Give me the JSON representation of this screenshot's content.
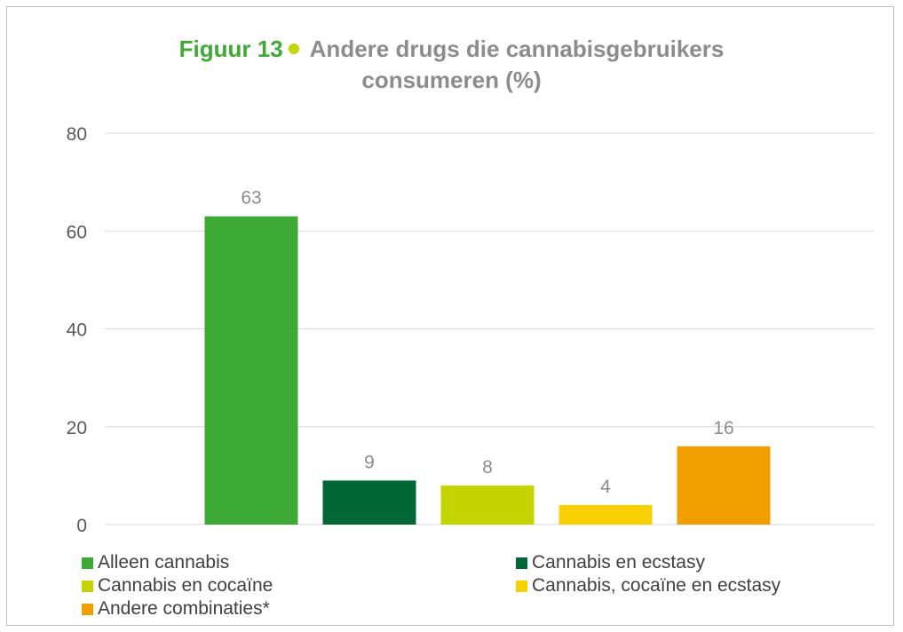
{
  "title": {
    "figure_label": "Figuur 13",
    "line1": "Andere drugs die cannabisgebruikers",
    "line2": "consumeren (%)"
  },
  "colors": {
    "title_green": "#3daa35",
    "title_dot": "#c3d400",
    "title_grey": "#8c8c8c"
  },
  "chart_data": {
    "type": "bar",
    "categories": [
      "Alleen cannabis",
      "Cannabis en ecstasy",
      "Cannabis en cocaïne",
      "Cannabis, cocaïne en ecstasy",
      "Andere combinaties*"
    ],
    "values": [
      63,
      9,
      8,
      4,
      16
    ],
    "data_labels": [
      "63",
      "9",
      "8",
      "4",
      "16"
    ],
    "colors": [
      "#3daa35",
      "#006837",
      "#c3d400",
      "#f9d100",
      "#f09e00"
    ],
    "ylim": [
      0,
      80
    ],
    "y_ticks": [
      0,
      20,
      40,
      60,
      80
    ],
    "y_tick_labels": [
      "0",
      "20",
      "40",
      "60",
      "80"
    ],
    "grid": true,
    "legend_position": "bottom",
    "xlabel": "",
    "ylabel": ""
  }
}
